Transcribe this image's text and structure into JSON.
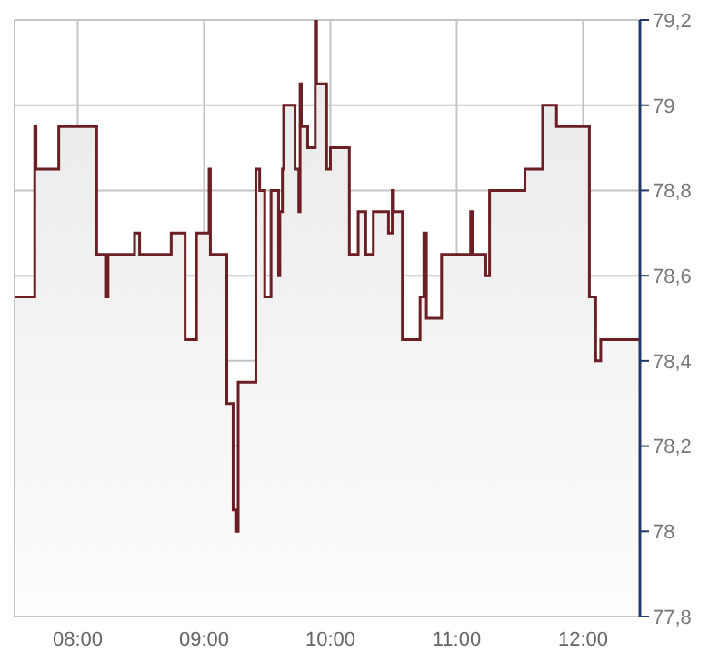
{
  "chart_data": {
    "type": "area",
    "x": [
      7.5,
      7.66,
      7.66,
      7.67,
      7.67,
      7.85,
      7.85,
      8.15,
      8.15,
      8.22,
      8.22,
      8.24,
      8.24,
      8.45,
      8.45,
      8.49,
      8.49,
      8.74,
      8.74,
      8.85,
      8.85,
      8.94,
      8.94,
      9.04,
      9.04,
      9.05,
      9.05,
      9.18,
      9.18,
      9.23,
      9.23,
      9.25,
      9.25,
      9.27,
      9.27,
      9.41,
      9.41,
      9.44,
      9.44,
      9.48,
      9.48,
      9.53,
      9.53,
      9.59,
      9.59,
      9.6,
      9.6,
      9.62,
      9.62,
      9.63,
      9.63,
      9.72,
      9.72,
      9.75,
      9.75,
      9.76,
      9.76,
      9.77,
      9.77,
      9.82,
      9.82,
      9.88,
      9.88,
      9.89,
      9.89,
      9.97,
      9.97,
      10.0,
      10.0,
      10.15,
      10.15,
      10.22,
      10.22,
      10.28,
      10.28,
      10.34,
      10.34,
      10.46,
      10.46,
      10.49,
      10.49,
      10.5,
      10.5,
      10.57,
      10.57,
      10.71,
      10.71,
      10.74,
      10.74,
      10.76,
      10.76,
      10.88,
      10.88,
      11.11,
      11.11,
      11.13,
      11.13,
      11.23,
      11.23,
      11.26,
      11.26,
      11.54,
      11.54,
      11.68,
      11.68,
      11.79,
      11.79,
      12.05,
      12.05,
      12.1,
      12.1,
      12.14,
      12.14,
      12.45
    ],
    "series": [
      {
        "color": "#6b1e24",
        "values": [
          78.55,
          78.55,
          78.95,
          78.95,
          78.85,
          78.85,
          78.95,
          78.95,
          78.65,
          78.65,
          78.55,
          78.55,
          78.65,
          78.65,
          78.7,
          78.7,
          78.65,
          78.65,
          78.7,
          78.7,
          78.45,
          78.45,
          78.7,
          78.7,
          78.85,
          78.85,
          78.65,
          78.65,
          78.3,
          78.3,
          78.05,
          78.05,
          78.0,
          78.0,
          78.35,
          78.35,
          78.85,
          78.85,
          78.8,
          78.8,
          78.55,
          78.55,
          78.8,
          78.8,
          78.6,
          78.6,
          78.75,
          78.75,
          78.85,
          78.85,
          79.0,
          79.0,
          78.85,
          78.85,
          78.75,
          78.75,
          79.05,
          79.05,
          78.95,
          78.95,
          78.9,
          78.9,
          79.2,
          79.2,
          79.05,
          79.05,
          78.85,
          78.85,
          78.9,
          78.9,
          78.65,
          78.65,
          78.75,
          78.75,
          78.65,
          78.65,
          78.75,
          78.75,
          78.7,
          78.7,
          78.8,
          78.8,
          78.75,
          78.75,
          78.45,
          78.45,
          78.55,
          78.55,
          78.7,
          78.7,
          78.5,
          78.5,
          78.65,
          78.65,
          78.75,
          78.75,
          78.65,
          78.65,
          78.6,
          78.6,
          78.8,
          78.8,
          78.85,
          78.85,
          79.0,
          79.0,
          78.95,
          78.95,
          78.55,
          78.55,
          78.4,
          78.4,
          78.45,
          78.45
        ]
      }
    ],
    "xlim": [
      7.5,
      12.45
    ],
    "xticks": [
      {
        "value": 8,
        "label": "08:00"
      },
      {
        "value": 9,
        "label": "09:00"
      },
      {
        "value": 10,
        "label": "10:00"
      },
      {
        "value": 11,
        "label": "11:00"
      },
      {
        "value": 12,
        "label": "12:00"
      }
    ],
    "ylim": [
      77.8,
      79.2
    ],
    "yticks": [
      {
        "value": 77.8,
        "label": "77,8"
      },
      {
        "value": 78,
        "label": "78"
      },
      {
        "value": 78.2,
        "label": "78,2"
      },
      {
        "value": 78.4,
        "label": "78,4"
      },
      {
        "value": 78.6,
        "label": "78,6"
      },
      {
        "value": 78.8,
        "label": "78,8"
      },
      {
        "value": 79,
        "label": "79"
      },
      {
        "value": 79.2,
        "label": "79,2"
      }
    ],
    "grid": true,
    "legend": false
  }
}
